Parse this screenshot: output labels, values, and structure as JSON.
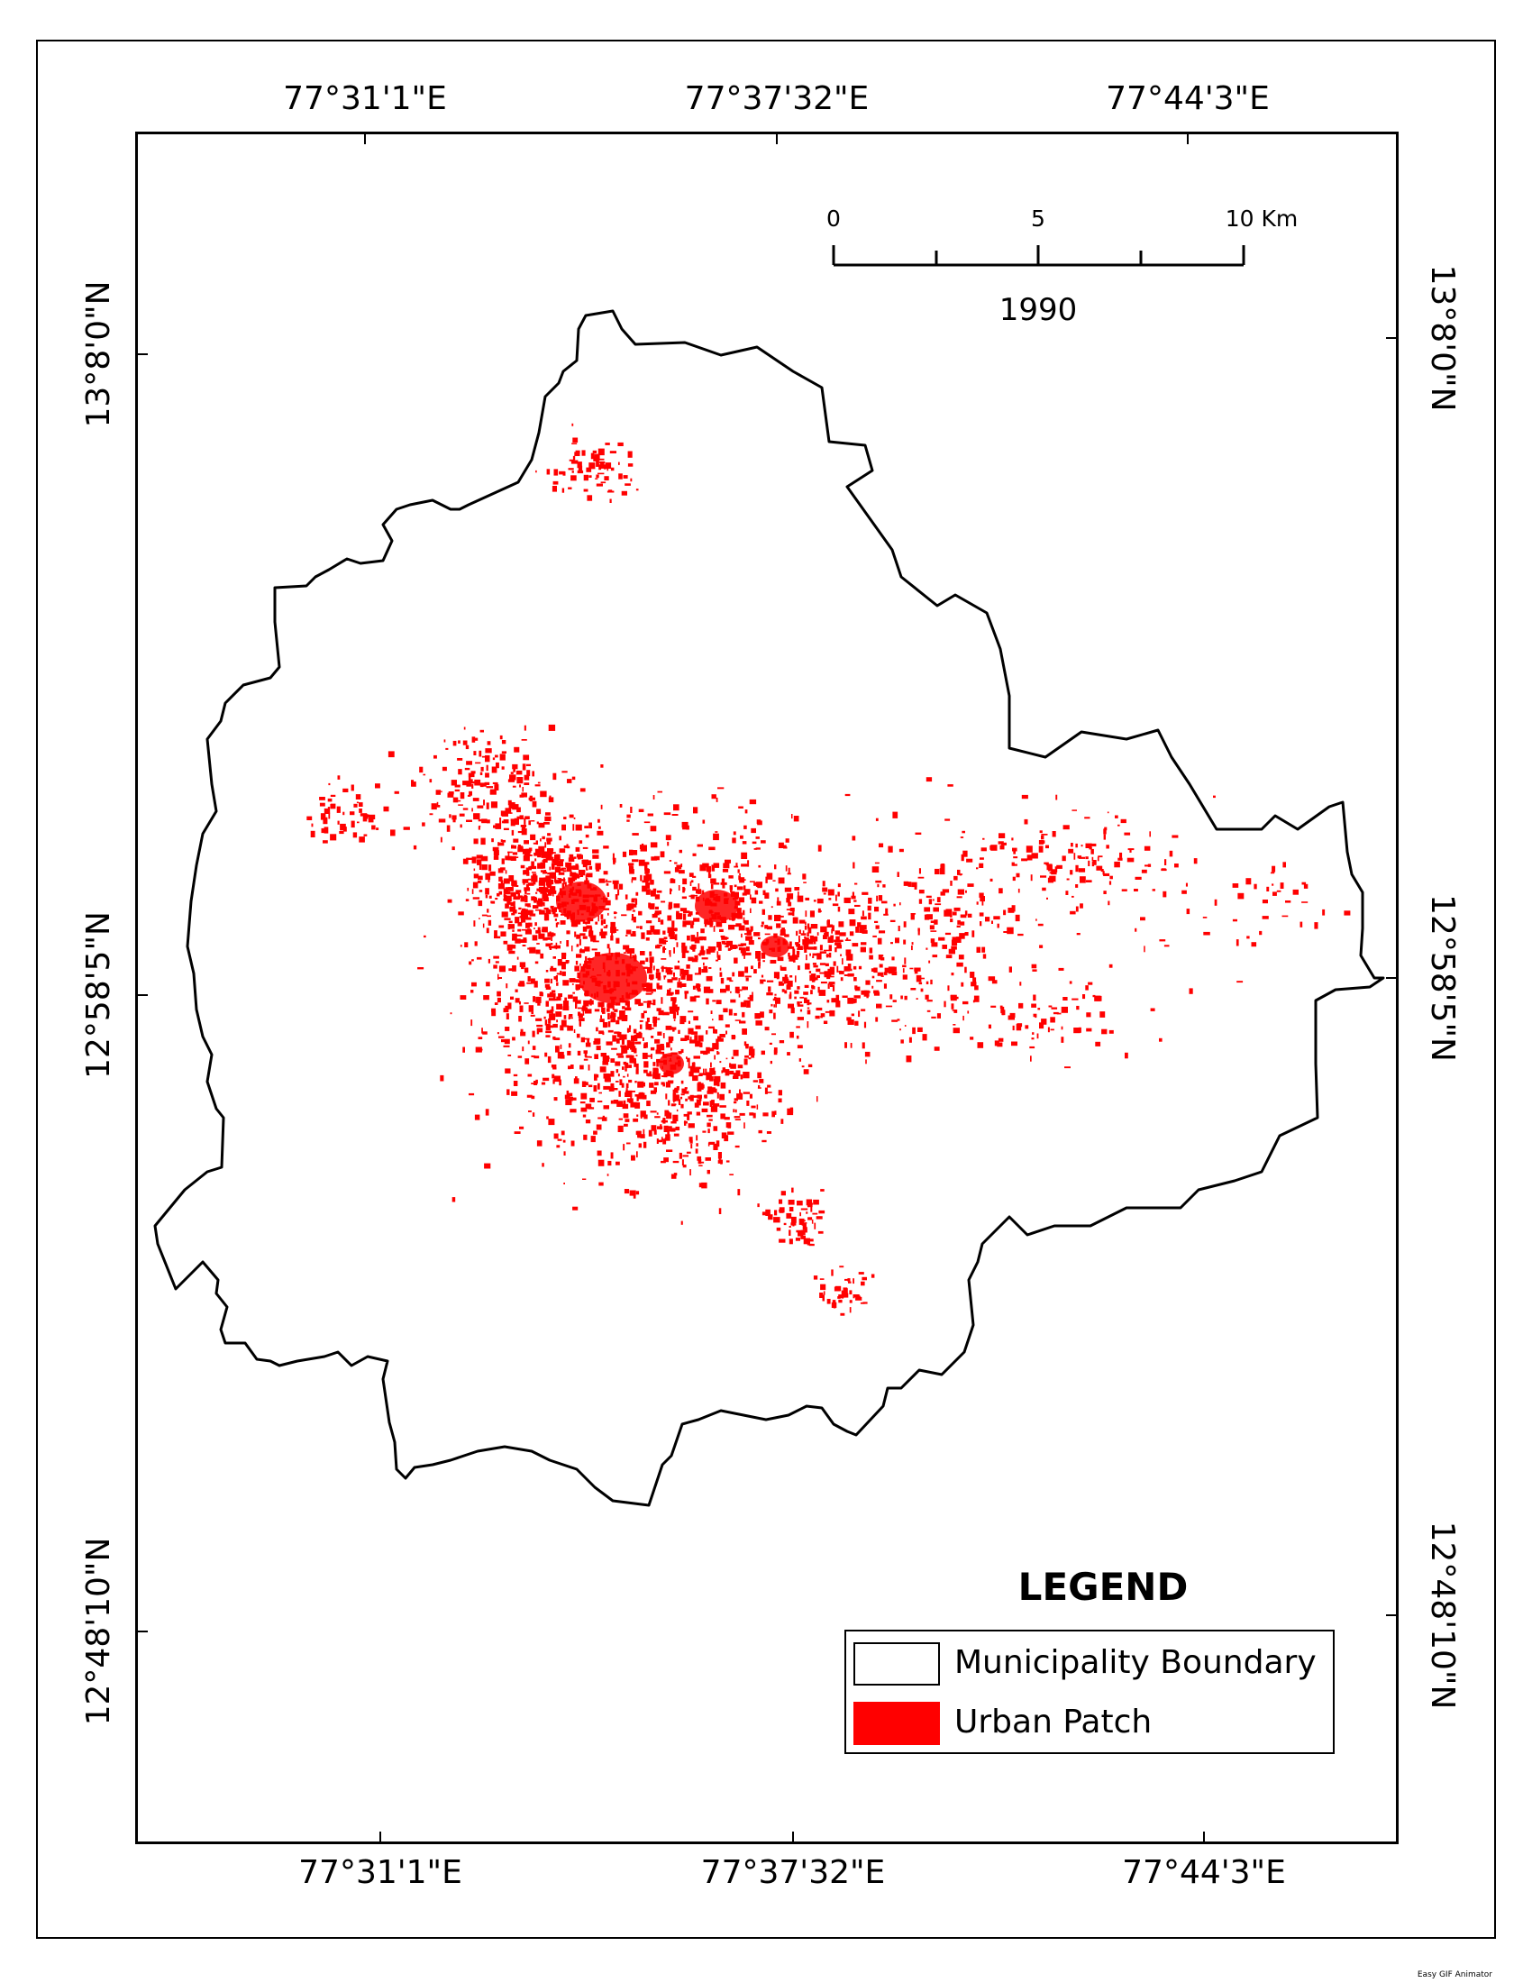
{
  "map": {
    "year": "1990",
    "lon_labels": [
      "77°31'1\"E",
      "77°37'32\"E",
      "77°44'3\"E"
    ],
    "lat_labels": [
      "13°8'0\"N",
      "12°58'5\"N",
      "12°48'10\"N"
    ],
    "scale_bar": {
      "labels": [
        "0",
        "5",
        "10 Km"
      ],
      "max_km": 10,
      "unit": "Km"
    }
  },
  "legend": {
    "title": "LEGEND",
    "items": [
      {
        "label": "Municipality Boundary",
        "color": "#ffffff"
      },
      {
        "label": "Urban Patch",
        "color": "#ff0000"
      }
    ]
  },
  "colors": {
    "urban": "#ff0000",
    "boundary": "#000000",
    "background": "#ffffff"
  },
  "footer": "Easy GIF Animator"
}
